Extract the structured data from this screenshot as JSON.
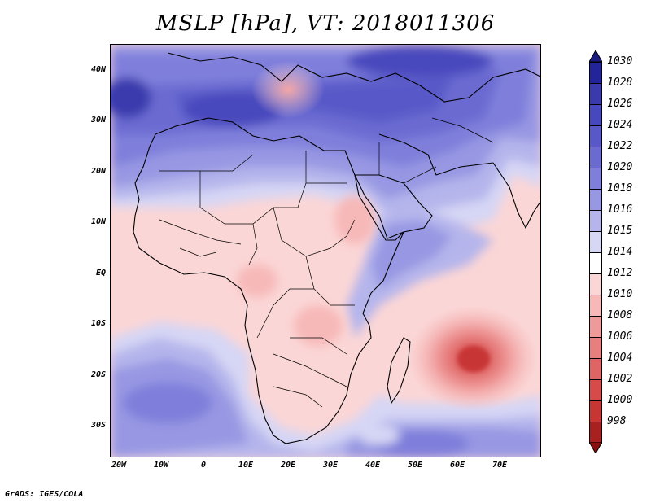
{
  "title": "MSLP [hPa], VT: 2018011306",
  "credit": "GrADS: IGES/COLA",
  "map": {
    "region": "Africa and Middle East",
    "variable": "Mean sea level pressure",
    "lat_labels": [
      "40N",
      "30N",
      "20N",
      "10N",
      "EQ",
      "10S",
      "20S",
      "30S"
    ],
    "lon_labels": [
      "20W",
      "10W",
      "0",
      "10E",
      "20E",
      "30E",
      "40E",
      "50E",
      "60E",
      "70E"
    ],
    "features": {
      "high_pressure_north_africa": "high",
      "low_pressure_mediterranean": "low",
      "tropical_low_mozambique_channel": "low"
    }
  },
  "colorbar": {
    "levels": [
      "1030",
      "1028",
      "1026",
      "1024",
      "1022",
      "1020",
      "1018",
      "1016",
      "1015",
      "1014",
      "1012",
      "1010",
      "1008",
      "1006",
      "1004",
      "1002",
      "1000",
      "998"
    ],
    "colors": [
      "#23239a",
      "#3a3aad",
      "#4848be",
      "#5858c8",
      "#6a6ad1",
      "#7f7fdb",
      "#9797e3",
      "#b5b5ec",
      "#d6d6f5",
      "#ffffff",
      "#fbd6d6",
      "#f7b8b8",
      "#ef9a9a",
      "#e77f7f",
      "#df6565",
      "#d74a4a",
      "#c83535",
      "#a82020"
    ]
  }
}
